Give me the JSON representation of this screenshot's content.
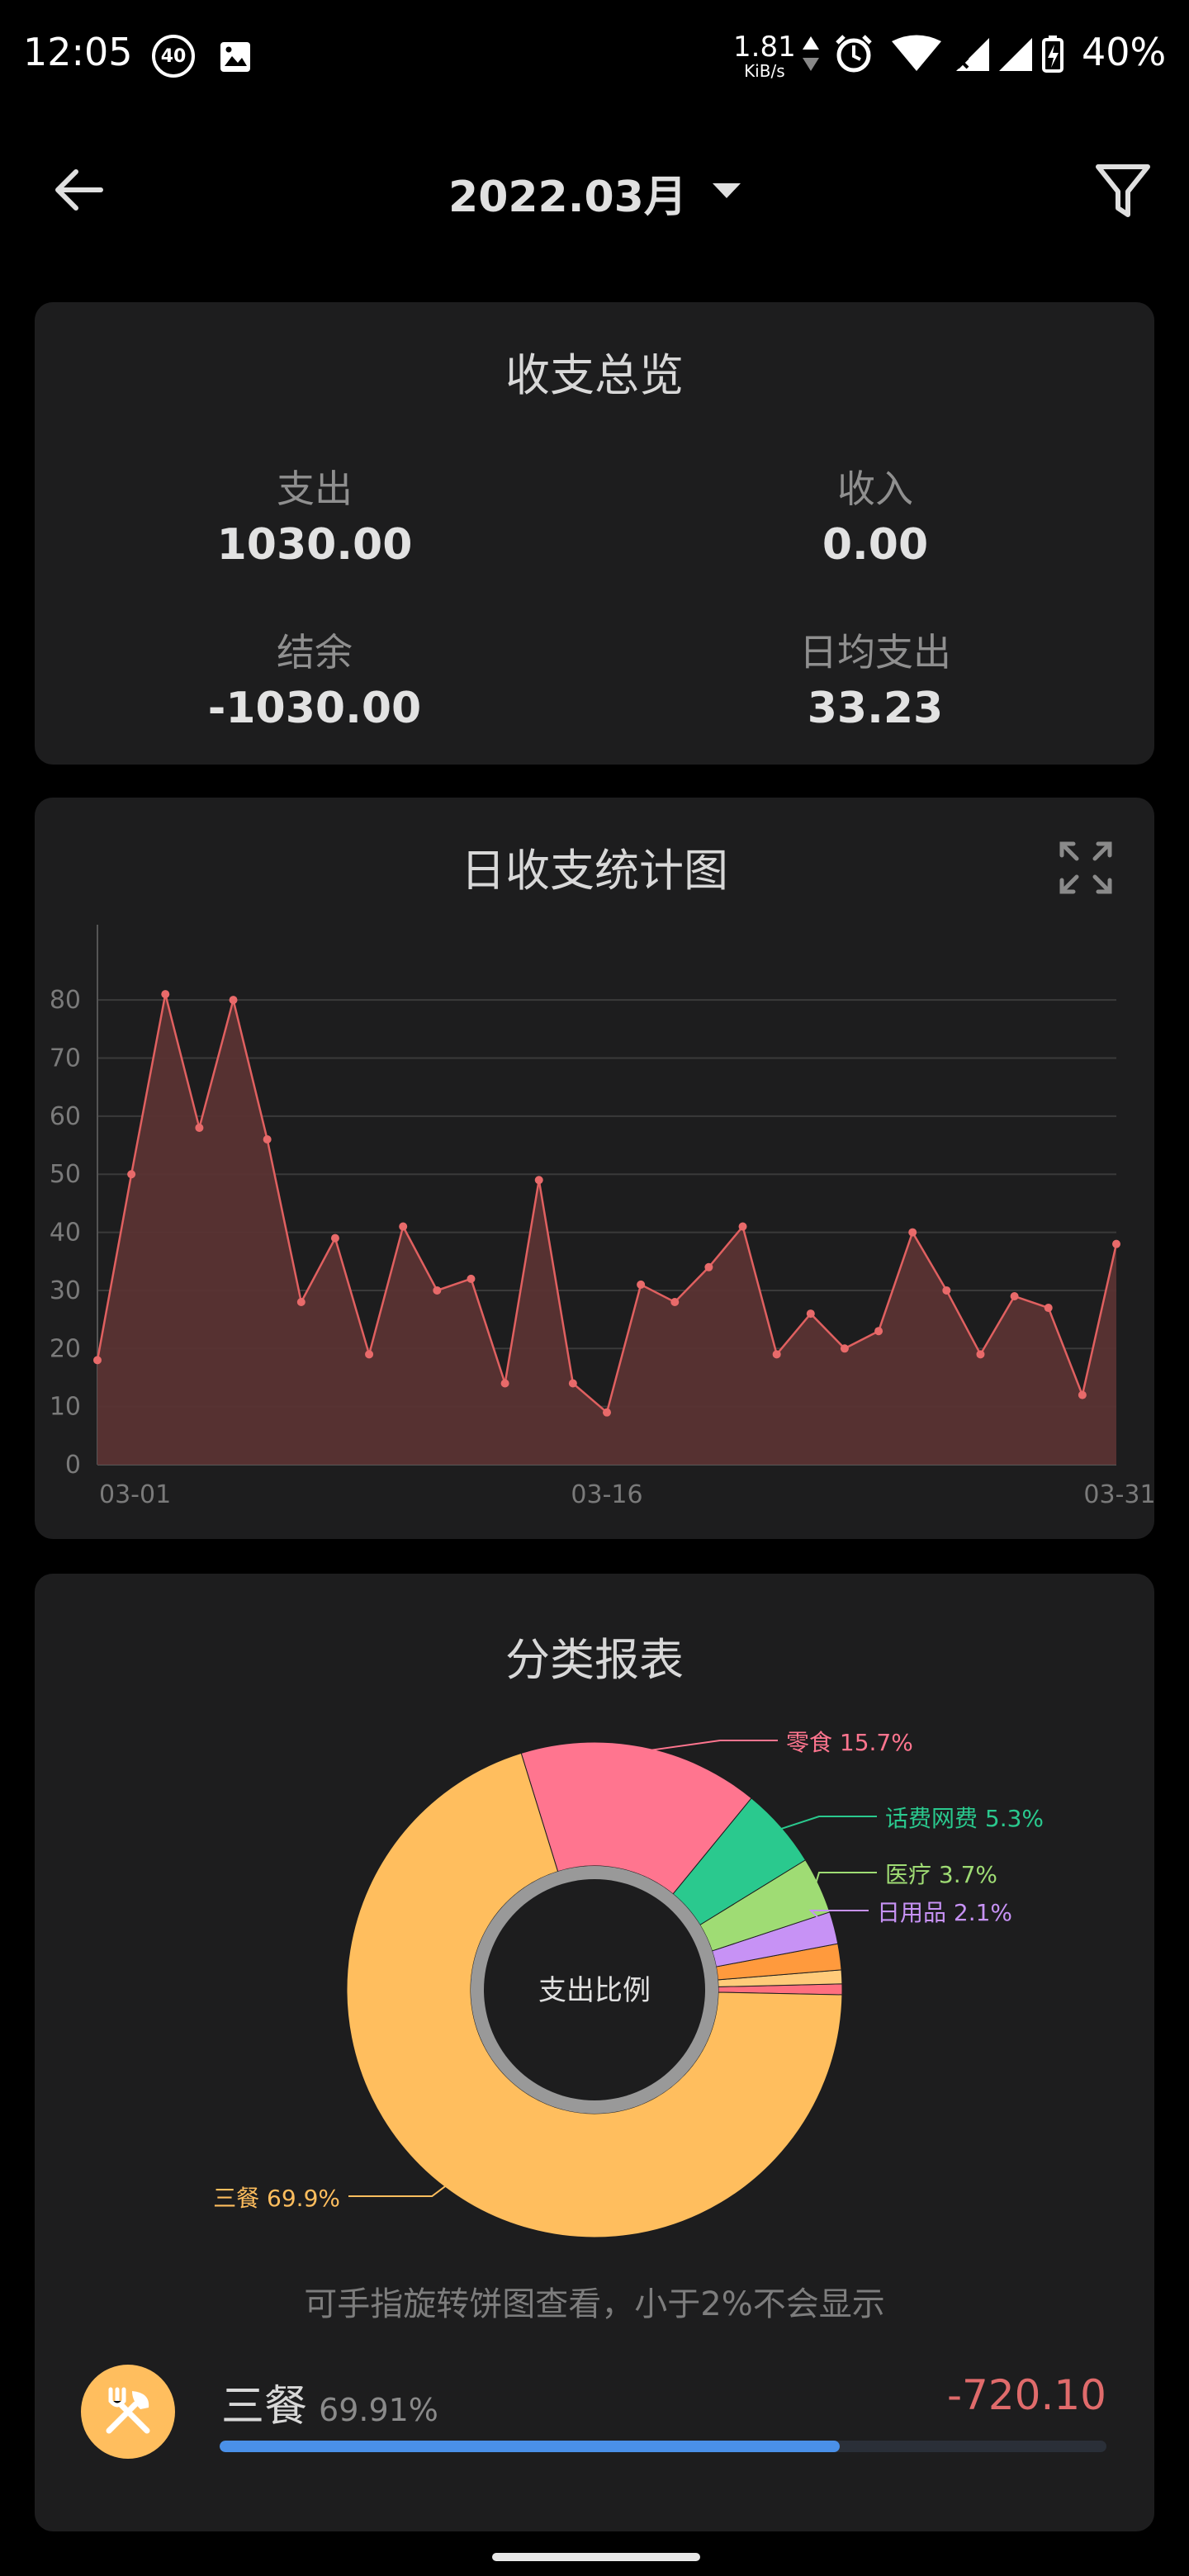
{
  "status_bar": {
    "time": "12:05",
    "badge": "40",
    "net_speed": "1.81",
    "net_unit": "KiB/s",
    "battery": "40%"
  },
  "header": {
    "month": "2022.03月"
  },
  "overview": {
    "title": "收支总览",
    "expense_label": "支出",
    "expense_value": "1030.00",
    "income_label": "收入",
    "income_value": "0.00",
    "balance_label": "结余",
    "balance_value": "-1030.00",
    "daily_label": "日均支出",
    "daily_value": "33.23"
  },
  "daily_chart": {
    "title": "日收支统计图"
  },
  "chart_data": [
    {
      "type": "area",
      "title": "日收支统计图",
      "x": [
        "03-01",
        "03-02",
        "03-03",
        "03-04",
        "03-05",
        "03-06",
        "03-07",
        "03-08",
        "03-09",
        "03-10",
        "03-11",
        "03-12",
        "03-13",
        "03-14",
        "03-15",
        "03-16",
        "03-17",
        "03-18",
        "03-19",
        "03-20",
        "03-21",
        "03-22",
        "03-23",
        "03-24",
        "03-25",
        "03-26",
        "03-27",
        "03-28",
        "03-29",
        "03-30",
        "03-31"
      ],
      "x_tick_labels": [
        "03-01",
        "03-16",
        "03-31"
      ],
      "y_ticks": [
        "0",
        "10",
        "20",
        "30",
        "40",
        "50",
        "60",
        "70",
        "80"
      ],
      "series": [
        {
          "values": [
            18,
            50,
            81,
            58,
            80,
            56,
            28,
            39,
            19,
            41,
            30,
            32,
            14,
            49,
            14,
            9,
            31,
            28,
            34,
            41,
            19,
            26,
            20,
            23,
            40,
            30,
            19,
            29,
            27,
            12,
            38
          ]
        }
      ],
      "ylim": [
        0,
        85
      ],
      "grid": true,
      "colors": {
        "line": "#e06060",
        "fill": "#5a3333",
        "point": "#e86a6a"
      }
    },
    {
      "type": "pie",
      "title": "分类报表",
      "center_label": "支出比例",
      "slices": [
        {
          "label": "三餐",
          "pct": "69.9%",
          "value": 69.9,
          "color": "#ffbe5e"
        },
        {
          "label": "零食",
          "pct": "15.7%",
          "value": 15.7,
          "color": "#ff758f"
        },
        {
          "label": "话费网费",
          "pct": "5.3%",
          "value": 5.3,
          "color": "#2ac98e"
        },
        {
          "label": "医疗",
          "pct": "3.7%",
          "value": 3.7,
          "color": "#9fdc74"
        },
        {
          "label": "日用品",
          "pct": "2.1%",
          "value": 2.1,
          "color": "#c792f5"
        },
        {
          "label": "",
          "pct": "",
          "value": 1.7,
          "color": "#ff9a3d"
        },
        {
          "label": "",
          "pct": "",
          "value": 0.9,
          "color": "#ffcb7a"
        },
        {
          "label": "",
          "pct": "",
          "value": 0.7,
          "color": "#ff6f7f"
        }
      ]
    }
  ],
  "category_report": {
    "title": "分类报表",
    "hint": "可手指旋转饼图查看，小于2%不会显示",
    "rows": [
      {
        "name": "三餐",
        "pct": "69.91%",
        "amount": "-720.10",
        "fraction": 0.6991
      }
    ]
  }
}
